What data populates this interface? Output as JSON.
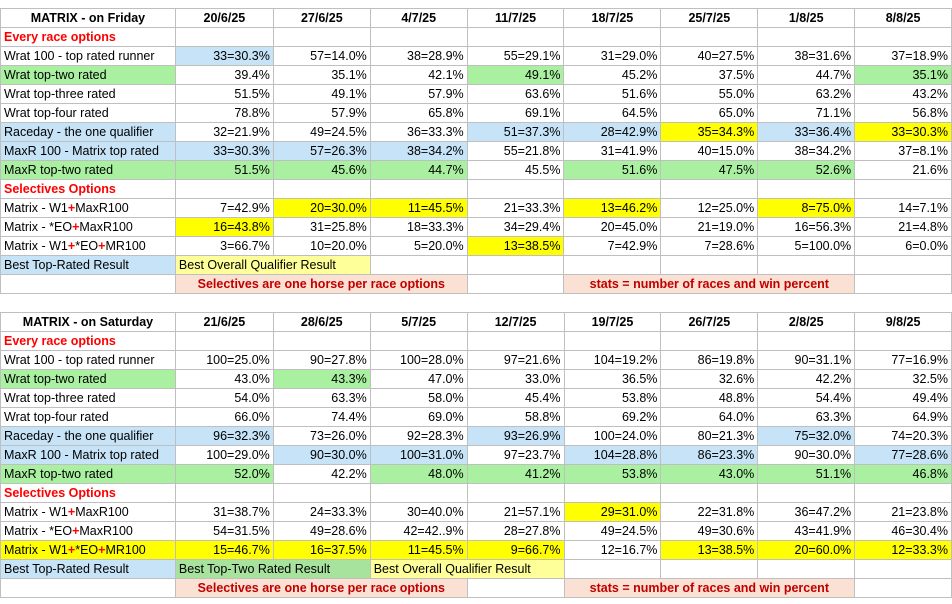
{
  "friday": {
    "title": "MATRIX - on Friday",
    "dates": [
      "20/6/25",
      "27/6/25",
      "4/7/25",
      "11/7/25",
      "18/7/25",
      "25/7/25",
      "1/8/25",
      "8/8/25"
    ],
    "section1": "Every race options",
    "rows1": [
      {
        "label": "Wrat 100 - top rated runner",
        "cells": [
          "33=30.3%",
          "57=14.0%",
          "38=28.9%",
          "55=29.1%",
          "31=29.0%",
          "40=27.5%",
          "38=31.6%",
          "37=18.9%"
        ]
      },
      {
        "label": "Wrat top-two rated",
        "cells": [
          "39.4%",
          "35.1%",
          "42.1%",
          "49.1%",
          "45.2%",
          "37.5%",
          "44.7%",
          "35.1%"
        ]
      },
      {
        "label": "Wrat top-three rated",
        "cells": [
          "51.5%",
          "49.1%",
          "57.9%",
          "63.6%",
          "51.6%",
          "55.0%",
          "63.2%",
          "43.2%"
        ]
      },
      {
        "label": "Wrat top-four rated",
        "cells": [
          "78.8%",
          "57.9%",
          "65.8%",
          "69.1%",
          "64.5%",
          "65.0%",
          "71.1%",
          "56.8%"
        ]
      },
      {
        "label": "Raceday - the one qualifier",
        "cells": [
          "32=21.9%",
          "49=24.5%",
          "36=33.3%",
          "51=37.3%",
          "28=42.9%",
          "35=34.3%",
          "33=36.4%",
          "33=30.3%"
        ]
      },
      {
        "label": "MaxR 100 - Matrix top rated",
        "cells": [
          "33=30.3%",
          "57=26.3%",
          "38=34.2%",
          "55=21.8%",
          "31=41.9%",
          "40=15.0%",
          "38=34.2%",
          "37=8.1%"
        ]
      },
      {
        "label": "MaxR top-two rated",
        "cells": [
          "51.5%",
          "45.6%",
          "44.7%",
          "45.5%",
          "51.6%",
          "47.5%",
          "52.6%",
          "21.6%"
        ]
      }
    ],
    "section2": "Selectives Options",
    "rows2": [
      {
        "pre": "Matrix - W1",
        "sep1": "+",
        "mid": "MaxR100",
        "sep2": "",
        "post": "",
        "cells": [
          "7=42.9%",
          "20=30.0%",
          "11=45.5%",
          "21=33.3%",
          "13=46.2%",
          "12=25.0%",
          "8=75.0%",
          "14=7.1%"
        ]
      },
      {
        "pre": "Matrix - *EO",
        "sep1": "+",
        "mid": "MaxR100",
        "sep2": "",
        "post": "",
        "cells": [
          "16=43.8%",
          "31=25.8%",
          "18=33.3%",
          "34=29.4%",
          "20=45.0%",
          "21=19.0%",
          "16=56.3%",
          "21=4.8%"
        ]
      },
      {
        "pre": "Matrix - W1",
        "sep1": "+",
        "mid": "*EO",
        "sep2": "+",
        "post": "MR100",
        "cells": [
          "3=66.7%",
          "10=20.0%",
          "5=20.0%",
          "13=38.5%",
          "7=42.9%",
          "7=28.6%",
          "5=100.0%",
          "6=0.0%"
        ]
      }
    ],
    "legend": {
      "best_top": "Best Top-Rated Result",
      "best_overall": "Best Overall Qualifier Result"
    },
    "notes": {
      "selectives": "Selectives are one horse per race options",
      "stats": "stats = number of races and win percent"
    }
  },
  "saturday": {
    "title": "MATRIX - on Saturday",
    "dates": [
      "21/6/25",
      "28/6/25",
      "5/7/25",
      "12/7/25",
      "19/7/25",
      "26/7/25",
      "2/8/25",
      "9/8/25"
    ],
    "section1": "Every race options",
    "rows1": [
      {
        "label": "Wrat 100 - top rated runner",
        "cells": [
          "100=25.0%",
          "90=27.8%",
          "100=28.0%",
          "97=21.6%",
          "104=19.2%",
          "86=19.8%",
          "90=31.1%",
          "77=16.9%"
        ]
      },
      {
        "label": "Wrat top-two rated",
        "cells": [
          "43.0%",
          "43.3%",
          "47.0%",
          "33.0%",
          "36.5%",
          "32.6%",
          "42.2%",
          "32.5%"
        ]
      },
      {
        "label": "Wrat top-three rated",
        "cells": [
          "54.0%",
          "63.3%",
          "58.0%",
          "45.4%",
          "53.8%",
          "48.8%",
          "54.4%",
          "49.4%"
        ]
      },
      {
        "label": "Wrat top-four rated",
        "cells": [
          "66.0%",
          "74.4%",
          "69.0%",
          "58.8%",
          "69.2%",
          "64.0%",
          "63.3%",
          "64.9%"
        ]
      },
      {
        "label": "Raceday - the one qualifier",
        "cells": [
          "96=32.3%",
          "73=26.0%",
          "92=28.3%",
          "93=26.9%",
          "100=24.0%",
          "80=21.3%",
          "75=32.0%",
          "74=20.3%"
        ]
      },
      {
        "label": "MaxR 100 - Matrix top rated",
        "cells": [
          "100=29.0%",
          "90=30.0%",
          "100=31.0%",
          "97=23.7%",
          "104=28.8%",
          "86=23.3%",
          "90=30.0%",
          "77=28.6%"
        ]
      },
      {
        "label": "MaxR top-two rated",
        "cells": [
          "52.0%",
          "42.2%",
          "48.0%",
          "41.2%",
          "53.8%",
          "43.0%",
          "51.1%",
          "46.8%"
        ]
      }
    ],
    "section2": "Selectives Options",
    "rows2": [
      {
        "pre": "Matrix - W1",
        "sep1": "+",
        "mid": "MaxR100",
        "sep2": "",
        "post": "",
        "cells": [
          "31=38.7%",
          "24=33.3%",
          "30=40.0%",
          "21=57.1%",
          "29=31.0%",
          "22=31.8%",
          "36=47.2%",
          "21=23.8%"
        ]
      },
      {
        "pre": "Matrix - *EO",
        "sep1": "+",
        "mid": "MaxR100",
        "sep2": "",
        "post": "",
        "cells": [
          "54=31.5%",
          "49=28.6%",
          "42=42..9%",
          "28=27.8%",
          "49=24.5%",
          "49=30.6%",
          "43=41.9%",
          "46=30.4%"
        ]
      },
      {
        "pre": "Matrix - W1",
        "sep1": "+",
        "mid": "*EO",
        "sep2": "+",
        "post": "MR100",
        "cells": [
          "15=46.7%",
          "16=37.5%",
          "11=45.5%",
          "9=66.7%",
          "12=16.7%",
          "13=38.5%",
          "20=60.0%",
          "12=33.3%"
        ]
      }
    ],
    "legend": {
      "best_top": "Best Top-Rated Result",
      "best_two": "Best Top-Two Rated Result",
      "best_overall": "Best Overall Qualifier Result"
    },
    "notes": {
      "selectives": "Selectives are one horse per race options",
      "stats": "stats = number of races and win percent"
    }
  },
  "colors": {
    "blue": "#c6e3f7",
    "green": "#a9f0a0",
    "yellow": "#ffff00",
    "peach": "#fbe1d4",
    "red": "#ff0000"
  }
}
